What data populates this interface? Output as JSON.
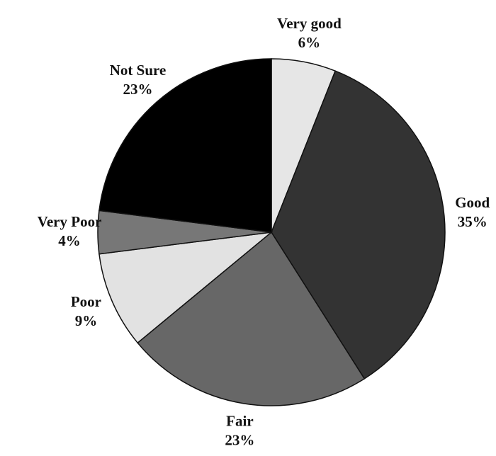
{
  "chart_data": {
    "type": "pie",
    "categories": [
      "Very good",
      "Good",
      "Fair",
      "Poor",
      "Very Poor",
      "Not Sure"
    ],
    "values": [
      6,
      35,
      23,
      9,
      4,
      23
    ],
    "value_labels": [
      "6%",
      "35%",
      "23%",
      "9%",
      "4%",
      "23%"
    ],
    "colors": [
      "#e6e6e6",
      "#333333",
      "#676767",
      "#e2e2e2",
      "#777777",
      "#000000"
    ]
  }
}
